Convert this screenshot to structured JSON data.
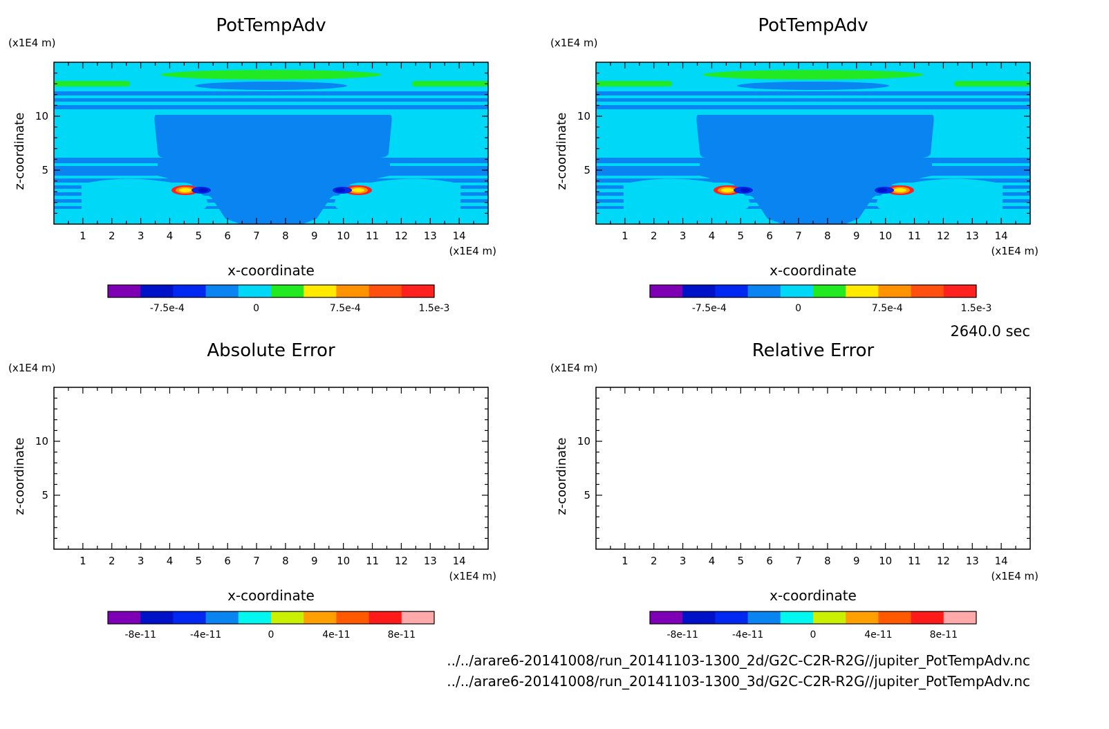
{
  "time_label": "2640.0 sec",
  "files": [
    "../../arare6-20141008/run_20141103-1300_2d/G2C-C2R-R2G//jupiter_PotTempAdv.nc",
    "../../arare6-20141008/run_20141103-1300_3d/G2C-C2R-R2G//jupiter_PotTempAdv.nc"
  ],
  "colors": {
    "bg_light": "#00d8f8",
    "bg_mid": "#0a84f0",
    "deep_blue": "#0028e6",
    "green": "#22ea22",
    "yellow": "#ffea00",
    "orange": "#ff9200",
    "red": "#ff2020"
  },
  "chart_data": [
    {
      "type": "heatmap",
      "title": "PotTempAdv",
      "xlabel": "x-coordinate",
      "ylabel": "z-coordinate",
      "x_unit": "(x1E4 m)",
      "y_unit": "(x1E4 m)",
      "xlim": [
        0,
        15
      ],
      "ylim": [
        0,
        15
      ],
      "x_ticks": [
        1,
        2,
        3,
        4,
        5,
        6,
        7,
        8,
        9,
        10,
        11,
        12,
        13,
        14
      ],
      "y_ticks": [
        5,
        10
      ],
      "colorbar": {
        "colors": [
          "#7d00b4",
          "#0012c8",
          "#0028f0",
          "#0a84f0",
          "#00d8f8",
          "#22ea22",
          "#ffea00",
          "#ff9200",
          "#ff5010",
          "#ff2020"
        ],
        "labels": [
          "-7.5e-4",
          "0",
          "7.5e-4",
          "1.5e-3"
        ],
        "label_values": [
          -0.00075,
          0,
          0.00075,
          0.0015
        ],
        "range": [
          -0.00125,
          0.0015
        ]
      },
      "filled": true
    },
    {
      "type": "heatmap",
      "title": "PotTempAdv",
      "xlabel": "x-coordinate",
      "ylabel": "z-coordinate",
      "x_unit": "(x1E4 m)",
      "y_unit": "(x1E4 m)",
      "xlim": [
        0,
        15
      ],
      "ylim": [
        0,
        15
      ],
      "x_ticks": [
        1,
        2,
        3,
        4,
        5,
        6,
        7,
        8,
        9,
        10,
        11,
        12,
        13,
        14
      ],
      "y_ticks": [
        5,
        10
      ],
      "colorbar": {
        "colors": [
          "#7d00b4",
          "#0012c8",
          "#0028f0",
          "#0a84f0",
          "#00d8f8",
          "#22ea22",
          "#ffea00",
          "#ff9200",
          "#ff5010",
          "#ff2020"
        ],
        "labels": [
          "-7.5e-4",
          "0",
          "7.5e-4",
          "1.5e-3"
        ],
        "label_values": [
          -0.00075,
          0,
          0.00075,
          0.0015
        ],
        "range": [
          -0.00125,
          0.0015
        ]
      },
      "filled": true
    },
    {
      "type": "heatmap",
      "title": "Absolute Error",
      "xlabel": "x-coordinate",
      "ylabel": "z-coordinate",
      "x_unit": "(x1E4 m)",
      "y_unit": "(x1E4 m)",
      "xlim": [
        0,
        15
      ],
      "ylim": [
        0,
        15
      ],
      "x_ticks": [
        1,
        2,
        3,
        4,
        5,
        6,
        7,
        8,
        9,
        10,
        11,
        12,
        13,
        14
      ],
      "y_ticks": [
        5,
        10
      ],
      "colorbar": {
        "colors": [
          "#7d00b4",
          "#0012c8",
          "#0028f0",
          "#0a84f0",
          "#00f8f0",
          "#c8f000",
          "#ffa000",
          "#ff5a00",
          "#ff1a1a",
          "#ffaaaa"
        ],
        "labels": [
          "-8e-11",
          "-4e-11",
          "0",
          "4e-11",
          "8e-11"
        ],
        "label_values": [
          -8e-11,
          -4e-11,
          0,
          4e-11,
          8e-11
        ],
        "range": [
          -1e-10,
          1e-10
        ]
      },
      "filled": false
    },
    {
      "type": "heatmap",
      "title": "Relative Error",
      "xlabel": "x-coordinate",
      "ylabel": "z-coordinate",
      "x_unit": "(x1E4 m)",
      "y_unit": "(x1E4 m)",
      "xlim": [
        0,
        15
      ],
      "ylim": [
        0,
        15
      ],
      "x_ticks": [
        1,
        2,
        3,
        4,
        5,
        6,
        7,
        8,
        9,
        10,
        11,
        12,
        13,
        14
      ],
      "y_ticks": [
        5,
        10
      ],
      "colorbar": {
        "colors": [
          "#7d00b4",
          "#0012c8",
          "#0028f0",
          "#0a84f0",
          "#00f8f0",
          "#c8f000",
          "#ffa000",
          "#ff5a00",
          "#ff1a1a",
          "#ffaaaa"
        ],
        "labels": [
          "-8e-11",
          "-4e-11",
          "0",
          "4e-11",
          "8e-11"
        ],
        "label_values": [
          -8e-11,
          -4e-11,
          0,
          4e-11,
          8e-11
        ],
        "range": [
          -1e-10,
          1e-10
        ]
      },
      "filled": false
    }
  ]
}
